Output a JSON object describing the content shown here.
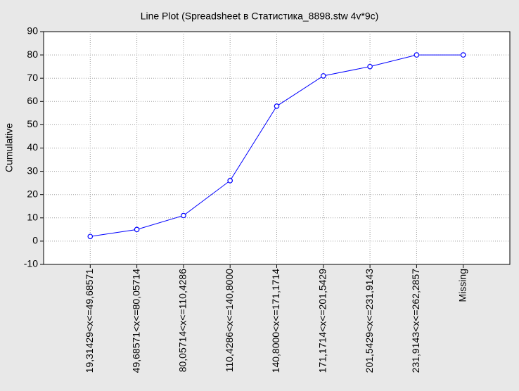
{
  "chart_data": {
    "type": "line",
    "title": "Line Plot (Spreadsheet в Статистика_8898.stw 4v*9c)",
    "y_label": "Cumulative",
    "categories": [
      "19,31429<x<=49,68571",
      "49,68571<x<=80,05714",
      "80,05714<x<=110,4286",
      "110,4286<x<=140,8000",
      "140,8000<x<=171,1714",
      "171,1714<x<=201,5429",
      "201,5429<x<=231,9143",
      "231,9143<x<=262,2857",
      "Missing"
    ],
    "series": [
      {
        "name": "Cumulative",
        "color": "#0000ff",
        "values": [
          2,
          5,
          11,
          26,
          58,
          71,
          75,
          80,
          80
        ]
      }
    ],
    "ylim": [
      -10,
      90
    ],
    "yticks": [
      -10,
      0,
      10,
      20,
      30,
      40,
      50,
      60,
      70,
      80,
      90
    ],
    "grid": true
  }
}
